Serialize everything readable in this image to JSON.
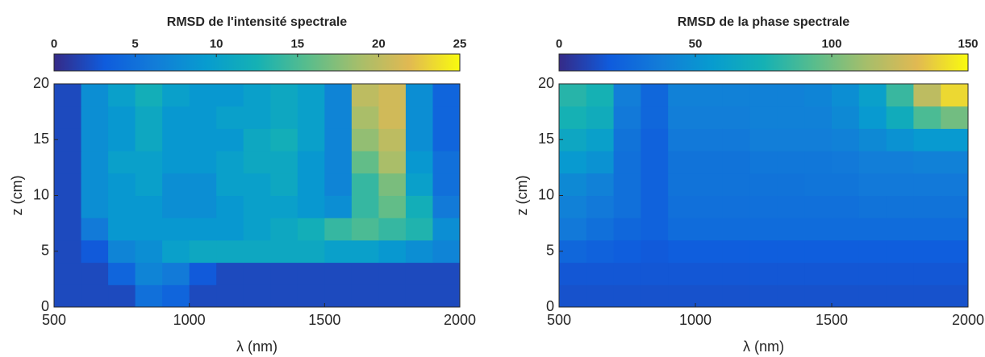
{
  "chart_data": [
    {
      "type": "heatmap",
      "title": "RMSD de l'intensité spectrale",
      "xlabel": "λ (nm)",
      "ylabel": "z (cm)",
      "colormap": "parula",
      "xlim": [
        500,
        2000
      ],
      "ylim": [
        0,
        20
      ],
      "xticks": [
        500,
        1000,
        1500,
        2000
      ],
      "yticks": [
        0,
        5,
        10,
        15,
        20
      ],
      "clim": [
        0,
        25
      ],
      "cticks": [
        0,
        5,
        10,
        15,
        20,
        25
      ],
      "x": [
        550,
        650,
        750,
        850,
        950,
        1050,
        1150,
        1250,
        1350,
        1450,
        1550,
        1650,
        1750,
        1850,
        1950
      ],
      "y": [
        1,
        3,
        5,
        7,
        9,
        11,
        13,
        15,
        17,
        19
      ],
      "z": [
        [
          2,
          2,
          2,
          5,
          4,
          2,
          2,
          2,
          2,
          2,
          2,
          2,
          2,
          2,
          2
        ],
        [
          2,
          2,
          4,
          7,
          6,
          3,
          2,
          2,
          2,
          2,
          2,
          2,
          2,
          2,
          2
        ],
        [
          2,
          3,
          7,
          8,
          10,
          11,
          11,
          11,
          11,
          11,
          10,
          10,
          9,
          8,
          7
        ],
        [
          2,
          6,
          9,
          9,
          9,
          9,
          9,
          10,
          11,
          12,
          14,
          15,
          14,
          13,
          8
        ],
        [
          2,
          8,
          9,
          9,
          8,
          8,
          9,
          10,
          10,
          9,
          8,
          14,
          16,
          12,
          6
        ],
        [
          2,
          8,
          9,
          10,
          8,
          8,
          10,
          10,
          11,
          9,
          7,
          14,
          17,
          10,
          5
        ],
        [
          2,
          8,
          10,
          10,
          9,
          9,
          10,
          11,
          11,
          9,
          7,
          16,
          19,
          9,
          5
        ],
        [
          2,
          8,
          9,
          11,
          9,
          9,
          9,
          11,
          12,
          10,
          7,
          18,
          20,
          8,
          4
        ],
        [
          2,
          8,
          9,
          11,
          9,
          9,
          10,
          10,
          11,
          10,
          7,
          19,
          21,
          8,
          4
        ],
        [
          2,
          8,
          10,
          12,
          10,
          9,
          9,
          10,
          11,
          10,
          7,
          20,
          21,
          8,
          4
        ]
      ]
    },
    {
      "type": "heatmap",
      "title": "RMSD de la phase spectrale",
      "xlabel": "λ (nm)",
      "ylabel": "z (cm)",
      "colormap": "parula",
      "xlim": [
        500,
        2000
      ],
      "ylim": [
        0,
        20
      ],
      "xticks": [
        500,
        1000,
        1500,
        2000
      ],
      "yticks": [
        0,
        5,
        10,
        15,
        20
      ],
      "clim": [
        0,
        150
      ],
      "cticks": [
        0,
        50,
        100,
        150
      ],
      "x": [
        550,
        650,
        750,
        850,
        950,
        1050,
        1150,
        1250,
        1350,
        1450,
        1550,
        1650,
        1750,
        1850,
        1950
      ],
      "y": [
        1,
        3,
        5,
        7,
        9,
        11,
        13,
        15,
        17,
        19
      ],
      "z": [
        [
          15,
          15,
          15,
          15,
          15,
          15,
          15,
          15,
          15,
          15,
          15,
          15,
          15,
          15,
          15
        ],
        [
          17,
          17,
          17,
          17,
          17,
          17,
          17,
          17,
          17,
          17,
          17,
          17,
          17,
          17,
          17
        ],
        [
          25,
          22,
          20,
          18,
          20,
          20,
          20,
          20,
          20,
          20,
          20,
          20,
          20,
          20,
          20
        ],
        [
          35,
          30,
          25,
          22,
          28,
          28,
          28,
          28,
          28,
          28,
          28,
          28,
          28,
          28,
          28
        ],
        [
          40,
          35,
          30,
          22,
          30,
          30,
          30,
          30,
          30,
          30,
          30,
          32,
          32,
          32,
          32
        ],
        [
          45,
          40,
          30,
          22,
          32,
          32,
          32,
          32,
          32,
          33,
          33,
          35,
          35,
          35,
          35
        ],
        [
          55,
          50,
          30,
          22,
          32,
          32,
          32,
          34,
          34,
          34,
          35,
          38,
          38,
          40,
          40
        ],
        [
          65,
          60,
          32,
          22,
          35,
          35,
          35,
          38,
          38,
          38,
          40,
          45,
          50,
          55,
          55
        ],
        [
          75,
          70,
          35,
          25,
          38,
          38,
          38,
          40,
          40,
          40,
          45,
          55,
          70,
          90,
          100
        ],
        [
          80,
          75,
          38,
          25,
          40,
          40,
          40,
          40,
          40,
          42,
          48,
          60,
          85,
          120,
          140
        ]
      ]
    }
  ]
}
